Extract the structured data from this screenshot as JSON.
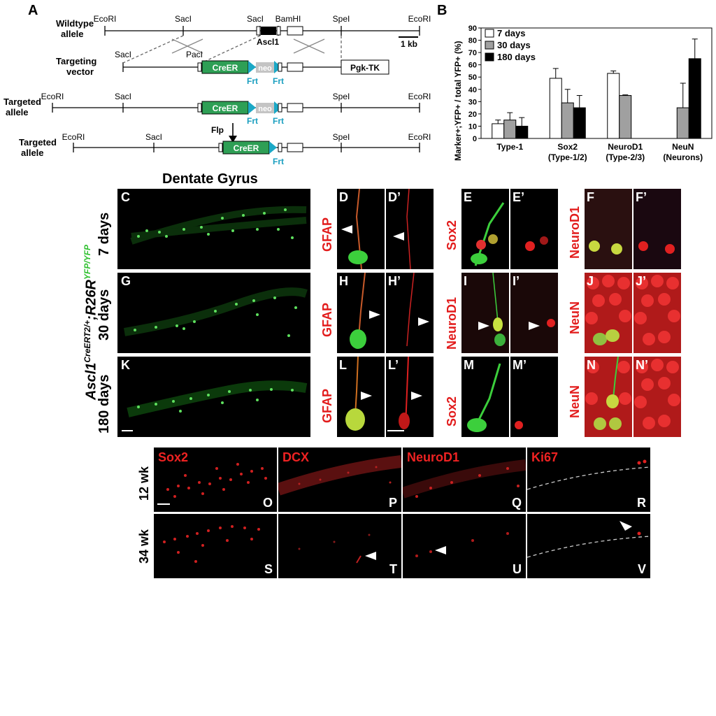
{
  "panelA": {
    "letter": "A",
    "rows": [
      {
        "label1": "Wildtype",
        "label2": "allele"
      },
      {
        "label1": "Targeting",
        "label2": "vector"
      },
      {
        "label1": "Targeted",
        "label2": "allele"
      },
      {
        "label1": "Targeted",
        "label2": "allele"
      }
    ],
    "sites": {
      "ecori": "EcoRI",
      "saci": "SacI",
      "bamhi": "BamHI",
      "spei": "SpeI",
      "paci": "PacI"
    },
    "gene": "Ascl1",
    "scale": "1 kb",
    "creer": "CreER",
    "neo": "neo",
    "frt": "Frt",
    "pgk": "Pgk-TK",
    "flp": "Flp"
  },
  "panelB": {
    "letter": "B",
    "chart_data": {
      "type": "bar",
      "ylabel": "Marker+;YFP+ / total YFP+ (%)",
      "ylim": [
        0,
        90
      ],
      "yticks": [
        0,
        10,
        20,
        30,
        40,
        50,
        60,
        70,
        80,
        90
      ],
      "categories": [
        {
          "line1": "Type-1",
          "line2": ""
        },
        {
          "line1": "Sox2",
          "line2": "(Type-1/2)"
        },
        {
          "line1": "NeuroD1",
          "line2": "(Type-2/3)"
        },
        {
          "line1": "NeuN",
          "line2": "(Neurons)"
        }
      ],
      "series": [
        {
          "name": "7 days",
          "color": "#ffffff",
          "values": [
            12,
            49,
            53,
            null
          ],
          "errors": [
            3,
            8,
            2,
            null
          ]
        },
        {
          "name": "30 days",
          "color": "#a0a0a0",
          "values": [
            15,
            29,
            35,
            25
          ],
          "errors": [
            6,
            11,
            0.5,
            20
          ]
        },
        {
          "name": "180 days",
          "color": "#000000",
          "values": [
            10,
            25,
            null,
            65
          ],
          "errors": [
            7,
            10,
            null,
            16
          ]
        }
      ],
      "legend": "top-left"
    }
  },
  "dentate": {
    "title": "Dentate Gyrus",
    "genotype": "Ascl1CreERT2/+;R26RYFP/YFP",
    "genotype_base": "Ascl1",
    "genotype_sup1": "CreERT2/+",
    "genotype_mid": ";R26R",
    "genotype_sup2": "YFP/YFP",
    "rows": [
      {
        "time": "7 days",
        "main": "C",
        "cols": [
          {
            "marker": "GFAP",
            "a": "D",
            "b": "D’"
          },
          {
            "marker": "Sox2",
            "a": "E",
            "b": "E’"
          },
          {
            "marker": "NeuroD1",
            "a": "F",
            "b": "F’"
          }
        ]
      },
      {
        "time": "30 days",
        "main": "G",
        "cols": [
          {
            "marker": "GFAP",
            "a": "H",
            "b": "H’"
          },
          {
            "marker": "NeuroD1",
            "a": "I",
            "b": "I’"
          },
          {
            "marker": "NeuN",
            "a": "J",
            "b": "J’"
          }
        ]
      },
      {
        "time": "180 days",
        "main": "K",
        "cols": [
          {
            "marker": "GFAP",
            "a": "L",
            "b": "L’"
          },
          {
            "marker": "Sox2",
            "a": "M",
            "b": "M’"
          },
          {
            "marker": "NeuN",
            "a": "N",
            "b": "N’"
          }
        ]
      }
    ]
  },
  "bottom": {
    "markers": [
      "Sox2",
      "DCX",
      "NeuroD1",
      "Ki67"
    ],
    "rows": [
      {
        "age": "12 wk",
        "letters": [
          "O",
          "P",
          "Q",
          "R"
        ]
      },
      {
        "age": "34 wk",
        "letters": [
          "S",
          "T",
          "U",
          "V"
        ]
      }
    ]
  }
}
